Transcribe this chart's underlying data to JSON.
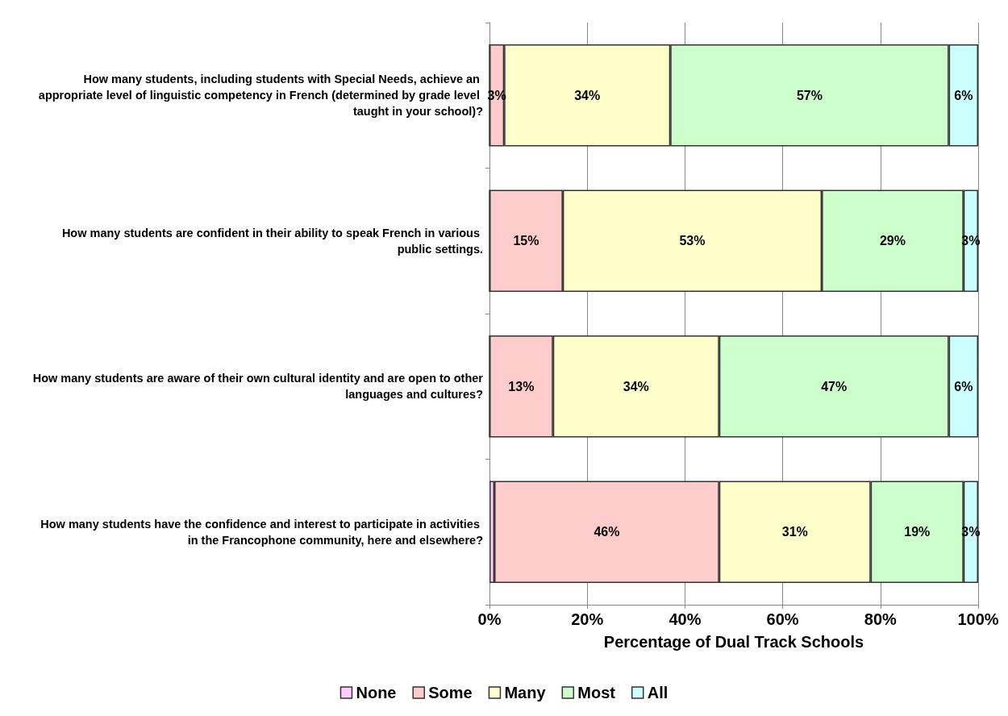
{
  "chart_data": {
    "type": "bar",
    "orientation": "horizontal",
    "stacked": true,
    "categories": [
      "How many students, including students with Special Needs, achieve an appropriate level of linguistic competency in French (determined by grade level taught in your school)?",
      "How many students are confident in their ability to speak French in various public settings.",
      "How many students are aware of their own cultural identity and are open to other languages and cultures?",
      "How many students have the confidence and interest to participate in activities in the Francophone community, here and elsewhere?"
    ],
    "series": [
      {
        "name": "None",
        "color": "#ffccff",
        "values": [
          0,
          0,
          0,
          1
        ],
        "value_labels": [
          null,
          null,
          null,
          null
        ]
      },
      {
        "name": "Some",
        "color": "#ffcccc",
        "values": [
          3,
          15,
          13,
          46
        ],
        "value_labels": [
          "3%",
          "15%",
          "13%",
          "46%"
        ]
      },
      {
        "name": "Many",
        "color": "#ffffcc",
        "values": [
          34,
          53,
          34,
          31
        ],
        "value_labels": [
          "34%",
          "53%",
          "34%",
          "31%"
        ]
      },
      {
        "name": "Most",
        "color": "#ccffcc",
        "values": [
          57,
          29,
          47,
          19
        ],
        "value_labels": [
          "57%",
          "29%",
          "47%",
          "19%"
        ]
      },
      {
        "name": "All",
        "color": "#ccffff",
        "values": [
          6,
          3,
          6,
          3
        ],
        "value_labels": [
          "6%",
          "3%",
          "6%",
          "3%"
        ]
      }
    ],
    "xlim": [
      0,
      100
    ],
    "xticks": [
      {
        "value": 0,
        "label": "0%"
      },
      {
        "value": 20,
        "label": "20%"
      },
      {
        "value": 40,
        "label": "40%"
      },
      {
        "value": 60,
        "label": "60%"
      },
      {
        "value": 80,
        "label": "80%"
      },
      {
        "value": 100,
        "label": "100%"
      }
    ],
    "xlabel": "Percentage of Dual Track Schools",
    "grid": "x",
    "legend": "bottom"
  }
}
